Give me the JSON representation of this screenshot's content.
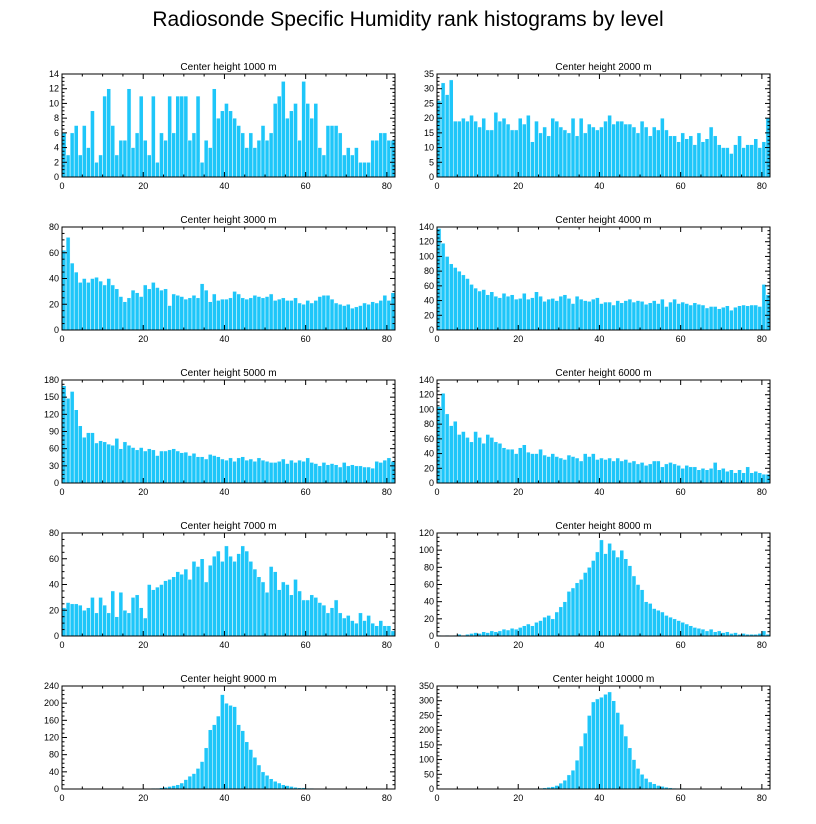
{
  "figure_title": "Radiosonde Specific Humidity rank histograms by level",
  "colors": {
    "bar": "#1ec6f9",
    "bar_edge": "#ffffff",
    "axis": "#000000"
  },
  "chart_data": [
    {
      "type": "bar",
      "title": "Center height 1000 m",
      "xlim": [
        0,
        82
      ],
      "ylim": [
        0,
        14
      ],
      "xticks": [
        0,
        20,
        40,
        60,
        80
      ],
      "yticks": [
        0,
        2,
        4,
        6,
        8,
        10,
        12,
        14
      ],
      "values": [
        6,
        3,
        6,
        7,
        3,
        7,
        4,
        9,
        2,
        3,
        11,
        12,
        7,
        3,
        5,
        5,
        12,
        4,
        6,
        11,
        5,
        3,
        11,
        2,
        6,
        5,
        11,
        6,
        11,
        11,
        11,
        5,
        6,
        11,
        2,
        5,
        4,
        12,
        8,
        9,
        10,
        9,
        8,
        7,
        6,
        4,
        6,
        4,
        5,
        7,
        5,
        6,
        10,
        11,
        13,
        8,
        9,
        10,
        5,
        13,
        10,
        8,
        10,
        4,
        3,
        7,
        7,
        7,
        6,
        3,
        4,
        3,
        4,
        2,
        2,
        2,
        5,
        5,
        6,
        6,
        5,
        5
      ]
    },
    {
      "type": "bar",
      "title": "Center height 2000 m",
      "xlim": [
        0,
        82
      ],
      "ylim": [
        0,
        35
      ],
      "xticks": [
        0,
        20,
        40,
        60,
        80
      ],
      "yticks": [
        0,
        5,
        10,
        15,
        20,
        25,
        30,
        35
      ],
      "values": [
        26,
        32,
        28,
        33,
        19,
        19,
        20,
        19,
        21,
        19,
        17,
        20,
        16,
        16,
        22,
        19,
        20,
        18,
        16,
        16,
        20,
        18,
        21,
        12,
        19,
        15,
        17,
        14,
        20,
        19,
        17,
        16,
        15,
        20,
        14,
        20,
        15,
        18,
        17,
        16,
        17,
        19,
        21,
        18,
        19,
        19,
        18,
        18,
        17,
        15,
        19,
        17,
        14,
        17,
        16,
        20,
        16,
        14,
        14,
        12,
        15,
        13,
        14,
        11,
        15,
        12,
        13,
        17,
        14,
        11,
        10,
        10,
        8,
        11,
        14,
        10,
        11,
        11,
        13,
        10,
        12,
        20
      ]
    },
    {
      "type": "bar",
      "title": "Center height 3000 m",
      "xlim": [
        0,
        82
      ],
      "ylim": [
        0,
        80
      ],
      "xticks": [
        0,
        20,
        40,
        60,
        80
      ],
      "yticks": [
        0,
        20,
        40,
        60,
        80
      ],
      "values": [
        62,
        72,
        52,
        45,
        37,
        40,
        37,
        40,
        41,
        38,
        35,
        40,
        35,
        32,
        26,
        22,
        25,
        31,
        29,
        26,
        35,
        32,
        37,
        33,
        31,
        32,
        19,
        28,
        27,
        26,
        24,
        25,
        27,
        25,
        36,
        31,
        22,
        28,
        23,
        24,
        24,
        25,
        30,
        28,
        25,
        24,
        25,
        27,
        26,
        25,
        26,
        28,
        23,
        24,
        25,
        23,
        23,
        25,
        21,
        20,
        23,
        21,
        23,
        26,
        27,
        27,
        24,
        21,
        20,
        19,
        20,
        17,
        18,
        19,
        21,
        20,
        22,
        21,
        23,
        27,
        23,
        29
      ]
    },
    {
      "type": "bar",
      "title": "Center height 4000 m",
      "xlim": [
        0,
        82
      ],
      "ylim": [
        0,
        140
      ],
      "xticks": [
        0,
        20,
        40,
        60,
        80
      ],
      "yticks": [
        0,
        20,
        40,
        60,
        80,
        100,
        120,
        140
      ],
      "values": [
        138,
        118,
        100,
        90,
        85,
        80,
        75,
        70,
        62,
        57,
        53,
        55,
        48,
        52,
        46,
        44,
        50,
        46,
        48,
        42,
        43,
        50,
        42,
        44,
        52,
        46,
        39,
        42,
        43,
        40,
        46,
        48,
        43,
        36,
        46,
        42,
        40,
        39,
        42,
        44,
        36,
        38,
        38,
        34,
        40,
        37,
        40,
        42,
        38,
        40,
        39,
        35,
        37,
        40,
        36,
        42,
        32,
        38,
        42,
        36,
        38,
        36,
        34,
        37,
        35,
        34,
        30,
        32,
        32,
        29,
        31,
        33,
        27,
        31,
        33,
        34,
        33,
        34,
        34,
        32,
        62,
        48
      ]
    },
    {
      "type": "bar",
      "title": "Center height 5000 m",
      "xlim": [
        0,
        82
      ],
      "ylim": [
        0,
        180
      ],
      "xticks": [
        0,
        20,
        40,
        60,
        80
      ],
      "yticks": [
        0,
        30,
        60,
        90,
        120,
        150,
        180
      ],
      "values": [
        170,
        148,
        160,
        128,
        100,
        80,
        88,
        88,
        70,
        74,
        72,
        68,
        66,
        78,
        60,
        72,
        66,
        62,
        58,
        62,
        56,
        60,
        58,
        48,
        56,
        56,
        58,
        60,
        56,
        53,
        54,
        48,
        52,
        46,
        46,
        42,
        50,
        48,
        46,
        42,
        40,
        44,
        38,
        44,
        46,
        40,
        42,
        38,
        44,
        40,
        38,
        36,
        36,
        38,
        42,
        34,
        40,
        36,
        40,
        38,
        44,
        36,
        34,
        30,
        36,
        32,
        34,
        32,
        28,
        36,
        30,
        32,
        30,
        30,
        28,
        28,
        26,
        38,
        36,
        40,
        44,
        38
      ]
    },
    {
      "type": "bar",
      "title": "Center height 6000 m",
      "xlim": [
        0,
        82
      ],
      "ylim": [
        0,
        140
      ],
      "xticks": [
        0,
        20,
        40,
        60,
        80
      ],
      "yticks": [
        0,
        20,
        40,
        60,
        80,
        100,
        120,
        140
      ],
      "values": [
        104,
        122,
        94,
        78,
        84,
        66,
        70,
        62,
        56,
        70,
        62,
        54,
        66,
        62,
        56,
        54,
        48,
        46,
        46,
        40,
        48,
        52,
        42,
        40,
        40,
        46,
        38,
        36,
        40,
        36,
        34,
        32,
        38,
        36,
        34,
        30,
        40,
        36,
        40,
        32,
        34,
        32,
        34,
        30,
        34,
        30,
        32,
        28,
        30,
        26,
        28,
        24,
        26,
        30,
        30,
        22,
        26,
        28,
        26,
        24,
        20,
        24,
        22,
        22,
        18,
        20,
        18,
        20,
        28,
        18,
        20,
        16,
        18,
        14,
        18,
        14,
        22,
        14,
        16,
        14,
        12,
        12
      ]
    },
    {
      "type": "bar",
      "title": "Center height 7000 m",
      "xlim": [
        0,
        82
      ],
      "ylim": [
        0,
        80
      ],
      "xticks": [
        0,
        20,
        40,
        60,
        80
      ],
      "yticks": [
        0,
        20,
        40,
        60,
        80
      ],
      "values": [
        22,
        26,
        25,
        25,
        24,
        20,
        22,
        30,
        18,
        30,
        24,
        18,
        35,
        15,
        34,
        20,
        18,
        30,
        32,
        22,
        14,
        40,
        36,
        38,
        40,
        43,
        44,
        46,
        50,
        48,
        52,
        44,
        58,
        54,
        60,
        42,
        55,
        62,
        66,
        58,
        70,
        62,
        58,
        64,
        70,
        66,
        58,
        52,
        46,
        42,
        34,
        54,
        50,
        36,
        42,
        40,
        32,
        44,
        35,
        28,
        28,
        32,
        30,
        26,
        24,
        18,
        22,
        28,
        18,
        14,
        16,
        12,
        10,
        18,
        12,
        16,
        10,
        8,
        12,
        8,
        8,
        4
      ]
    },
    {
      "type": "bar",
      "title": "Center height 8000 m",
      "xlim": [
        0,
        82
      ],
      "ylim": [
        0,
        120
      ],
      "xticks": [
        0,
        20,
        40,
        60,
        80
      ],
      "yticks": [
        0,
        20,
        40,
        60,
        80,
        100,
        120
      ],
      "values": [
        1,
        0,
        1,
        0,
        1,
        2,
        1,
        2,
        3,
        4,
        3,
        5,
        4,
        6,
        5,
        6,
        8,
        7,
        9,
        8,
        10,
        12,
        14,
        12,
        16,
        18,
        22,
        24,
        20,
        28,
        34,
        40,
        52,
        56,
        62,
        66,
        74,
        80,
        88,
        98,
        112,
        96,
        108,
        100,
        92,
        100,
        90,
        82,
        70,
        60,
        54,
        40,
        38,
        32,
        30,
        28,
        24,
        22,
        20,
        18,
        16,
        14,
        12,
        10,
        9,
        8,
        6,
        8,
        5,
        6,
        4,
        5,
        3,
        4,
        2,
        3,
        2,
        2,
        2,
        3,
        6,
        2
      ]
    },
    {
      "type": "bar",
      "title": "Center height 9000 m",
      "xlim": [
        0,
        82
      ],
      "ylim": [
        0,
        240
      ],
      "xticks": [
        0,
        20,
        40,
        60,
        80
      ],
      "yticks": [
        0,
        40,
        80,
        120,
        160,
        200,
        240
      ],
      "values": [
        0,
        0,
        0,
        0,
        0,
        0,
        0,
        0,
        0,
        0,
        0,
        0,
        0,
        0,
        0,
        0,
        0,
        0,
        0,
        1,
        1,
        1,
        2,
        2,
        3,
        4,
        6,
        8,
        10,
        14,
        22,
        30,
        36,
        48,
        64,
        96,
        138,
        150,
        170,
        220,
        200,
        195,
        192,
        150,
        136,
        110,
        92,
        74,
        56,
        40,
        32,
        24,
        18,
        14,
        10,
        8,
        6,
        4,
        3,
        3,
        2,
        2,
        1,
        1,
        1,
        0,
        1,
        0,
        0,
        1,
        0,
        0,
        0,
        0,
        0,
        1,
        0,
        0,
        0,
        0,
        0,
        0
      ]
    },
    {
      "type": "bar",
      "title": "Center height 10000 m",
      "xlim": [
        0,
        82
      ],
      "ylim": [
        0,
        350
      ],
      "xticks": [
        0,
        20,
        40,
        60,
        80
      ],
      "yticks": [
        0,
        50,
        100,
        150,
        200,
        250,
        300,
        350
      ],
      "values": [
        0,
        0,
        0,
        0,
        0,
        0,
        0,
        0,
        0,
        0,
        0,
        0,
        0,
        0,
        0,
        0,
        0,
        0,
        0,
        0,
        1,
        1,
        1,
        2,
        2,
        3,
        4,
        6,
        8,
        12,
        20,
        30,
        48,
        64,
        98,
        146,
        190,
        250,
        296,
        306,
        312,
        322,
        330,
        300,
        260,
        220,
        180,
        140,
        100,
        70,
        50,
        36,
        24,
        18,
        12,
        9,
        6,
        4,
        3,
        2,
        2,
        1,
        1,
        1,
        1,
        0,
        0,
        0,
        1,
        0,
        0,
        0,
        0,
        0,
        0,
        0,
        0,
        0,
        0,
        0,
        0,
        0
      ]
    }
  ]
}
